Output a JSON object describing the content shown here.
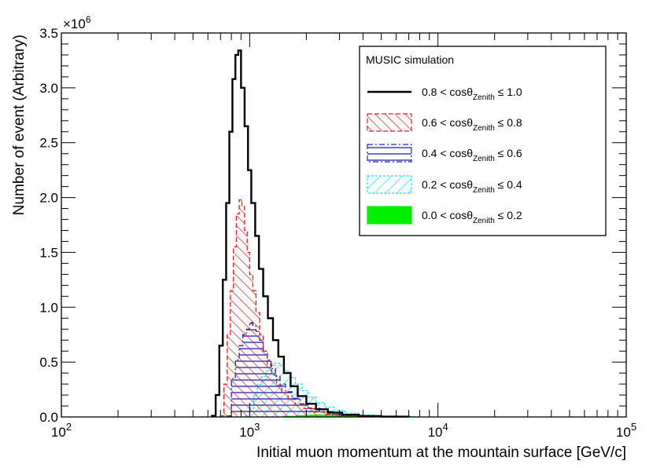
{
  "chart_data": {
    "type": "histogram",
    "xscale": "log",
    "xlim": [
      100,
      100000
    ],
    "ylim": [
      0,
      3500000
    ],
    "xlabel": "Initial muon momentum at the mountain surface [GeV/c]",
    "ylabel": "Number of event (Arbitrary)",
    "y_multiplier": "×10",
    "y_multiplier_exp": "6",
    "x_ticks": [
      {
        "base": "10",
        "exp": "2",
        "value": 100
      },
      {
        "base": "10",
        "exp": "3",
        "value": 1000
      },
      {
        "base": "10",
        "exp": "4",
        "value": 10000
      },
      {
        "base": "10",
        "exp": "5",
        "value": 100000
      }
    ],
    "y_ticks": [
      {
        "label": "0.0",
        "value": 0.0
      },
      {
        "label": "0.5",
        "value": 0.5
      },
      {
        "label": "1.0",
        "value": 1.0
      },
      {
        "label": "1.5",
        "value": 1.5
      },
      {
        "label": "2.0",
        "value": 2.0
      },
      {
        "label": "2.5",
        "value": 2.5
      },
      {
        "label": "3.0",
        "value": 3.0
      },
      {
        "label": "3.5",
        "value": 3.5
      }
    ],
    "legend": {
      "title": "MUSIC simulation",
      "position": "top-right"
    },
    "series": [
      {
        "id": "s1",
        "label_pre": "0.8 < cosθ",
        "label_sub": "Zenith",
        "label_post": " ≤ 1.0",
        "style": "line",
        "color": "#000000",
        "x": [
          630,
          660,
          690,
          720,
          750,
          780,
          810,
          840,
          870,
          900,
          940,
          980,
          1020,
          1070,
          1120,
          1180,
          1250,
          1330,
          1420,
          1520,
          1650,
          1800,
          2000,
          2250,
          2600,
          3100,
          3800,
          5000,
          7000
        ],
        "values": [
          10000,
          200000,
          650000,
          1250000,
          1950000,
          2600000,
          3080000,
          3300000,
          3340000,
          3000000,
          2650000,
          2250000,
          1950000,
          1650000,
          1350000,
          1100000,
          900000,
          700000,
          550000,
          400000,
          280000,
          190000,
          120000,
          70000,
          40000,
          20000,
          8000,
          3000
        ]
      },
      {
        "id": "s2",
        "label_pre": "0.6 < cosθ",
        "label_sub": "Zenith",
        "label_post": " ≤ 0.8",
        "style": "hatch-diagonal",
        "color": "#e8191b",
        "x": [
          700,
          730,
          760,
          790,
          820,
          850,
          880,
          910,
          940,
          970,
          1000,
          1040,
          1080,
          1130,
          1180,
          1240,
          1310,
          1390,
          1480,
          1600,
          1750,
          1950,
          2200,
          2550,
          3000,
          3700,
          5000,
          7000
        ],
        "values": [
          10000,
          300000,
          750000,
          1150000,
          1550000,
          1850000,
          1980000,
          1920000,
          1700000,
          1500000,
          1300000,
          1150000,
          950000,
          750000,
          600000,
          480000,
          380000,
          290000,
          220000,
          160000,
          110000,
          75000,
          45000,
          25000,
          12000,
          5000,
          2000
        ]
      },
      {
        "id": "s3",
        "label_pre": "0.4 < cosθ",
        "label_sub": "Zenith",
        "label_post": " ≤ 0.6",
        "style": "hatch-horizontal",
        "color": "#1f24b8",
        "x": [
          760,
          800,
          840,
          880,
          920,
          960,
          1000,
          1040,
          1080,
          1130,
          1180,
          1240,
          1300,
          1370,
          1450,
          1550,
          1680,
          1850,
          2050,
          2350,
          2750,
          3300,
          4200,
          6000
        ],
        "values": [
          10000,
          350000,
          520000,
          650000,
          750000,
          800000,
          860000,
          830000,
          780000,
          700000,
          600000,
          520000,
          440000,
          370000,
          300000,
          230000,
          170000,
          120000,
          80000,
          50000,
          25000,
          12000,
          4000
        ]
      },
      {
        "id": "s4",
        "label_pre": "0.2 < cosθ",
        "label_sub": "Zenith",
        "label_post": " ≤ 0.4",
        "style": "hatch-antidiagonal",
        "color": "#21e0f0",
        "x": [
          950,
          1000,
          1050,
          1100,
          1160,
          1220,
          1290,
          1360,
          1440,
          1530,
          1630,
          1750,
          1900,
          2050,
          2250,
          2500,
          2800,
          3200,
          3800,
          4600,
          6000,
          8000
        ],
        "values": [
          10000,
          80000,
          200000,
          300000,
          370000,
          420000,
          470000,
          490000,
          470000,
          420000,
          360000,
          300000,
          240000,
          180000,
          130000,
          90000,
          60000,
          35000,
          18000,
          8000,
          2500
        ]
      },
      {
        "id": "s5",
        "label_pre": "0.0 < cosθ",
        "label_sub": "Zenith",
        "label_post": " ≤ 0.2",
        "style": "fill",
        "color": "#00f000",
        "x": [
          1500,
          1800,
          2100,
          2500,
          3000,
          3600,
          4500,
          6000
        ],
        "values": [
          5000,
          12000,
          18000,
          16000,
          11000,
          6000,
          2000
        ]
      }
    ]
  }
}
